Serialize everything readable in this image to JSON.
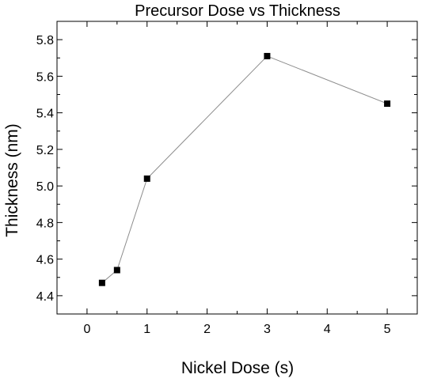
{
  "chart_data": {
    "type": "line",
    "title": "Precursor Dose vs Thickness",
    "xlabel": "Nickel Dose (s)",
    "ylabel": "Thickness (nm)",
    "xlim": [
      -0.5,
      5.5
    ],
    "ylim": [
      4.3,
      5.9
    ],
    "xticks": [
      0,
      1,
      2,
      3,
      4,
      5
    ],
    "xtick_labels": [
      "0",
      "1",
      "2",
      "3",
      "4",
      "5"
    ],
    "yticks": [
      4.4,
      4.6,
      4.8,
      5.0,
      5.2,
      5.4,
      5.6,
      5.8
    ],
    "ytick_labels": [
      "4.4",
      "4.6",
      "4.8",
      "5.0",
      "5.2",
      "5.4",
      "5.6",
      "5.8"
    ],
    "grid": false,
    "legend": "none",
    "series": [
      {
        "x": [
          0.25,
          0.5,
          1,
          3,
          5
        ],
        "y": [
          4.47,
          4.54,
          5.04,
          5.71,
          5.45
        ],
        "marker": "square",
        "marker_color": "#000000",
        "line_color": "#8c8c8c"
      }
    ]
  }
}
